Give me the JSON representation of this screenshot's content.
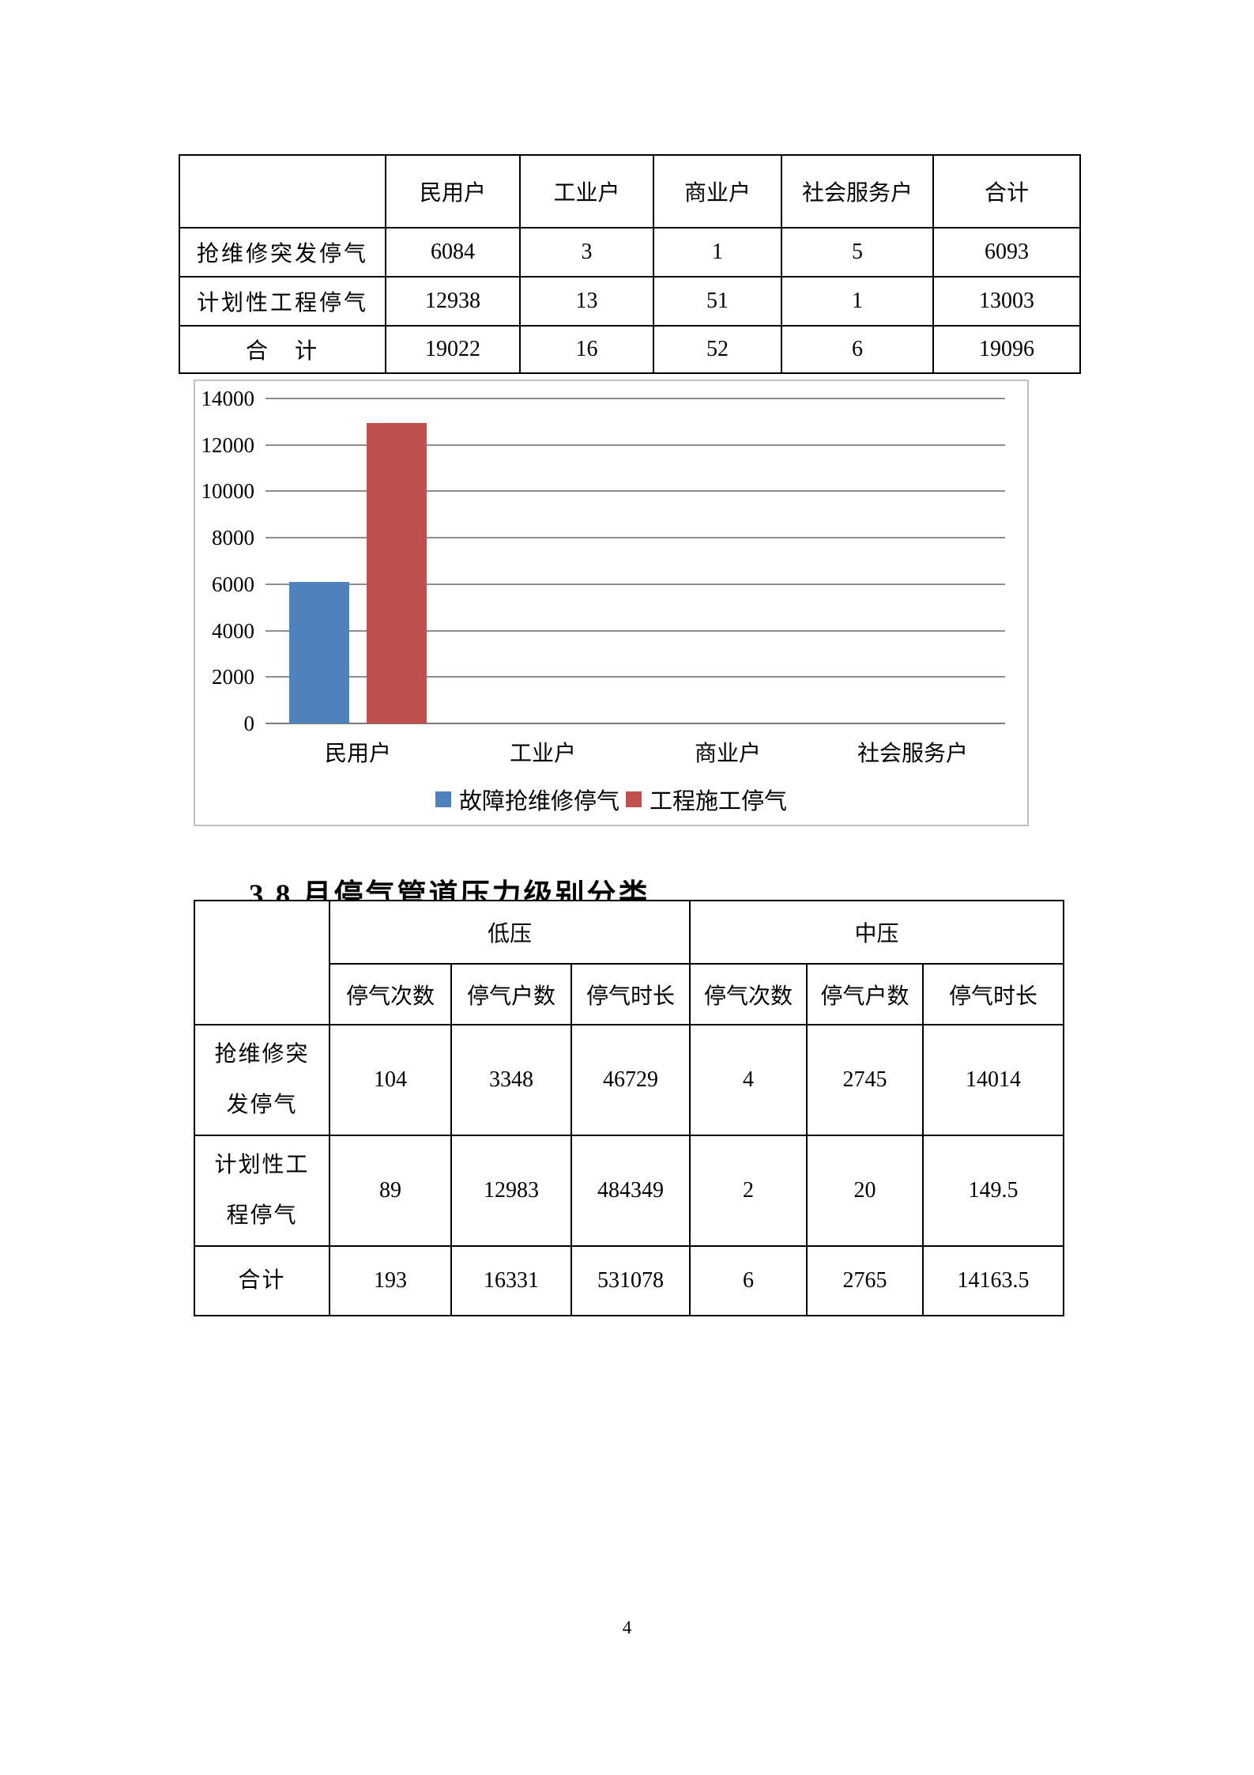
{
  "page": {
    "number": "4"
  },
  "table1": {
    "columns": [
      "",
      "民用户",
      "工业户",
      "商业户",
      "社会服务户",
      "合计"
    ],
    "rows": [
      {
        "label": "抢维修突发停气",
        "values": [
          "6084",
          "3",
          "1",
          "5",
          "6093"
        ]
      },
      {
        "label": "计划性工程停气",
        "values": [
          "12938",
          "13",
          "51",
          "1",
          "13003"
        ]
      },
      {
        "label": "合　计",
        "values": [
          "19022",
          "16",
          "52",
          "6",
          "19096"
        ]
      }
    ]
  },
  "chart_data": {
    "type": "bar",
    "categories": [
      "民用户",
      "工业户",
      "商业户",
      "社会服务户"
    ],
    "series": [
      {
        "name": "故障抢维修停气",
        "color": "#4F81BD",
        "values": [
          6084,
          3,
          1,
          5
        ]
      },
      {
        "name": "工程施工停气",
        "color": "#C0504D",
        "values": [
          12938,
          13,
          51,
          1
        ]
      }
    ],
    "title": "",
    "xlabel": "",
    "ylabel": "",
    "ylim": [
      0,
      14000
    ],
    "ytick_step": 2000,
    "grid": true,
    "legend_position": "bottom"
  },
  "heading": "3.8 月停气管道压力级别分类",
  "table2": {
    "groups": [
      "低压",
      "中压"
    ],
    "sub_columns": [
      "停气次数",
      "停气户数",
      "停气时长"
    ],
    "rows": [
      {
        "label": "抢维修突发停气",
        "values": [
          "104",
          "3348",
          "46729",
          "4",
          "2745",
          "14014"
        ]
      },
      {
        "label": "计划性工程停气",
        "values": [
          "89",
          "12983",
          "484349",
          "2",
          "20",
          "149.5"
        ]
      },
      {
        "label": "合计",
        "values": [
          "193",
          "16331",
          "531078",
          "6",
          "2765",
          "14163.5"
        ]
      }
    ]
  }
}
